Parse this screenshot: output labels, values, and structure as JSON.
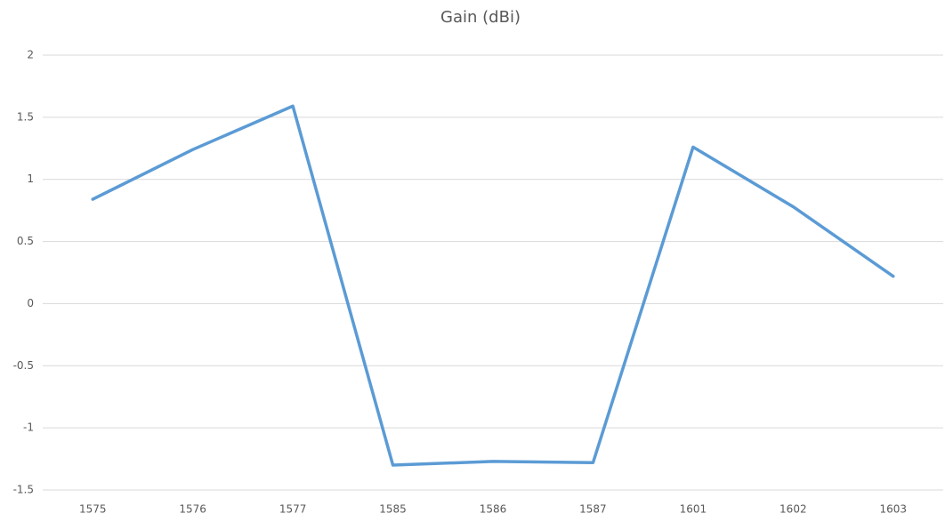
{
  "chart_data": {
    "type": "line",
    "title": "Gain (dBi)",
    "categories": [
      "1575",
      "1576",
      "1577",
      "1585",
      "1586",
      "1587",
      "1601",
      "1602",
      "1603"
    ],
    "series": [
      {
        "color": "#5b9bd5",
        "values": [
          0.84,
          1.24,
          1.59,
          -1.3,
          -1.27,
          -1.28,
          1.26,
          0.78,
          0.22
        ]
      }
    ],
    "ylim": [
      -1.5,
      2
    ],
    "yticks": [
      -1.5,
      -1,
      -0.5,
      0,
      0.5,
      1,
      1.5,
      2
    ],
    "grid": true
  }
}
